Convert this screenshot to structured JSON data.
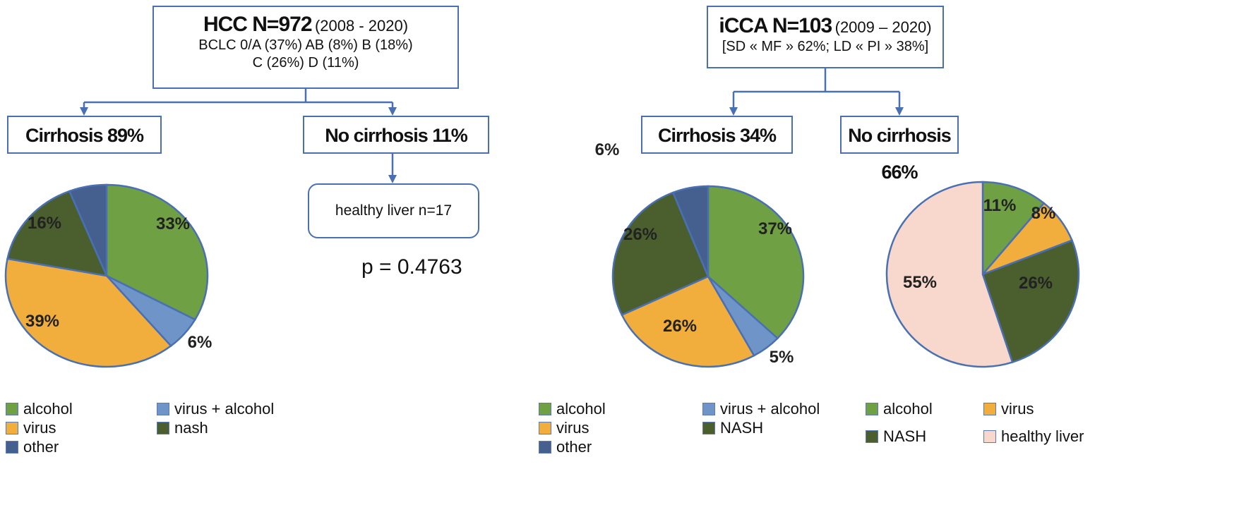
{
  "hcc": {
    "title_bold": "HCC N=972",
    "title_years": "(2008 - 2020)",
    "line2": "BCLC 0/A (37%) AB (8%) B (18%)",
    "line3": "C (26%)  D (11%)",
    "cirrhosis": "Cirrhosis 89%",
    "no_cirrhosis": "No cirrhosis 11%",
    "healthy": "healthy liver n=17",
    "pvalue": "p = 0.4763",
    "legend": [
      "alcohol",
      "virus + alcohol",
      "virus",
      "nash",
      "other"
    ]
  },
  "icca": {
    "title_bold": "iCCA N=103",
    "title_years": "(2009 – 2020)",
    "line2": "[SD « MF » 62%; LD « PI » 38%]",
    "cirrhosis": "Cirrhosis 34%",
    "no_cirrhosis": "No cirrhosis 66%",
    "legend_cirr": [
      "alcohol",
      "virus + alcohol",
      "virus",
      "NASH",
      "other"
    ],
    "legend_nocirr": [
      "alcohol",
      "virus",
      "NASH",
      "healthy liver"
    ]
  },
  "colors": {
    "alcohol": "#70a044",
    "virus_alcohol": "#6f94c8",
    "virus": "#f2ae3c",
    "nash": "#4a5e2e",
    "other": "#45608e",
    "healthy": "#f8d8cc",
    "edge": "#4a70b4"
  },
  "chart_data": [
    {
      "type": "pie",
      "title": "Cirrhosis 89%",
      "categories": [
        "alcohol",
        "virus + alcohol",
        "virus",
        "nash",
        "other"
      ],
      "values": [
        33,
        6,
        39,
        16,
        6
      ],
      "labels": [
        "33%",
        "6%",
        "39%",
        "16%",
        "6%"
      ]
    },
    {
      "type": "pie",
      "title": "Cirrhosis 34%",
      "categories": [
        "alcohol",
        "virus + alcohol",
        "virus",
        "NASH",
        "other"
      ],
      "values": [
        37,
        5,
        26,
        26,
        6
      ],
      "labels": [
        "37%",
        "5%",
        "26%",
        "26%",
        "6%"
      ]
    },
    {
      "type": "pie",
      "title": "No cirrhosis 66%",
      "categories": [
        "alcohol",
        "virus",
        "NASH",
        "healthy liver"
      ],
      "values": [
        11,
        8,
        26,
        55
      ],
      "labels": [
        "11%",
        "8%",
        "26%",
        "55%"
      ]
    }
  ]
}
